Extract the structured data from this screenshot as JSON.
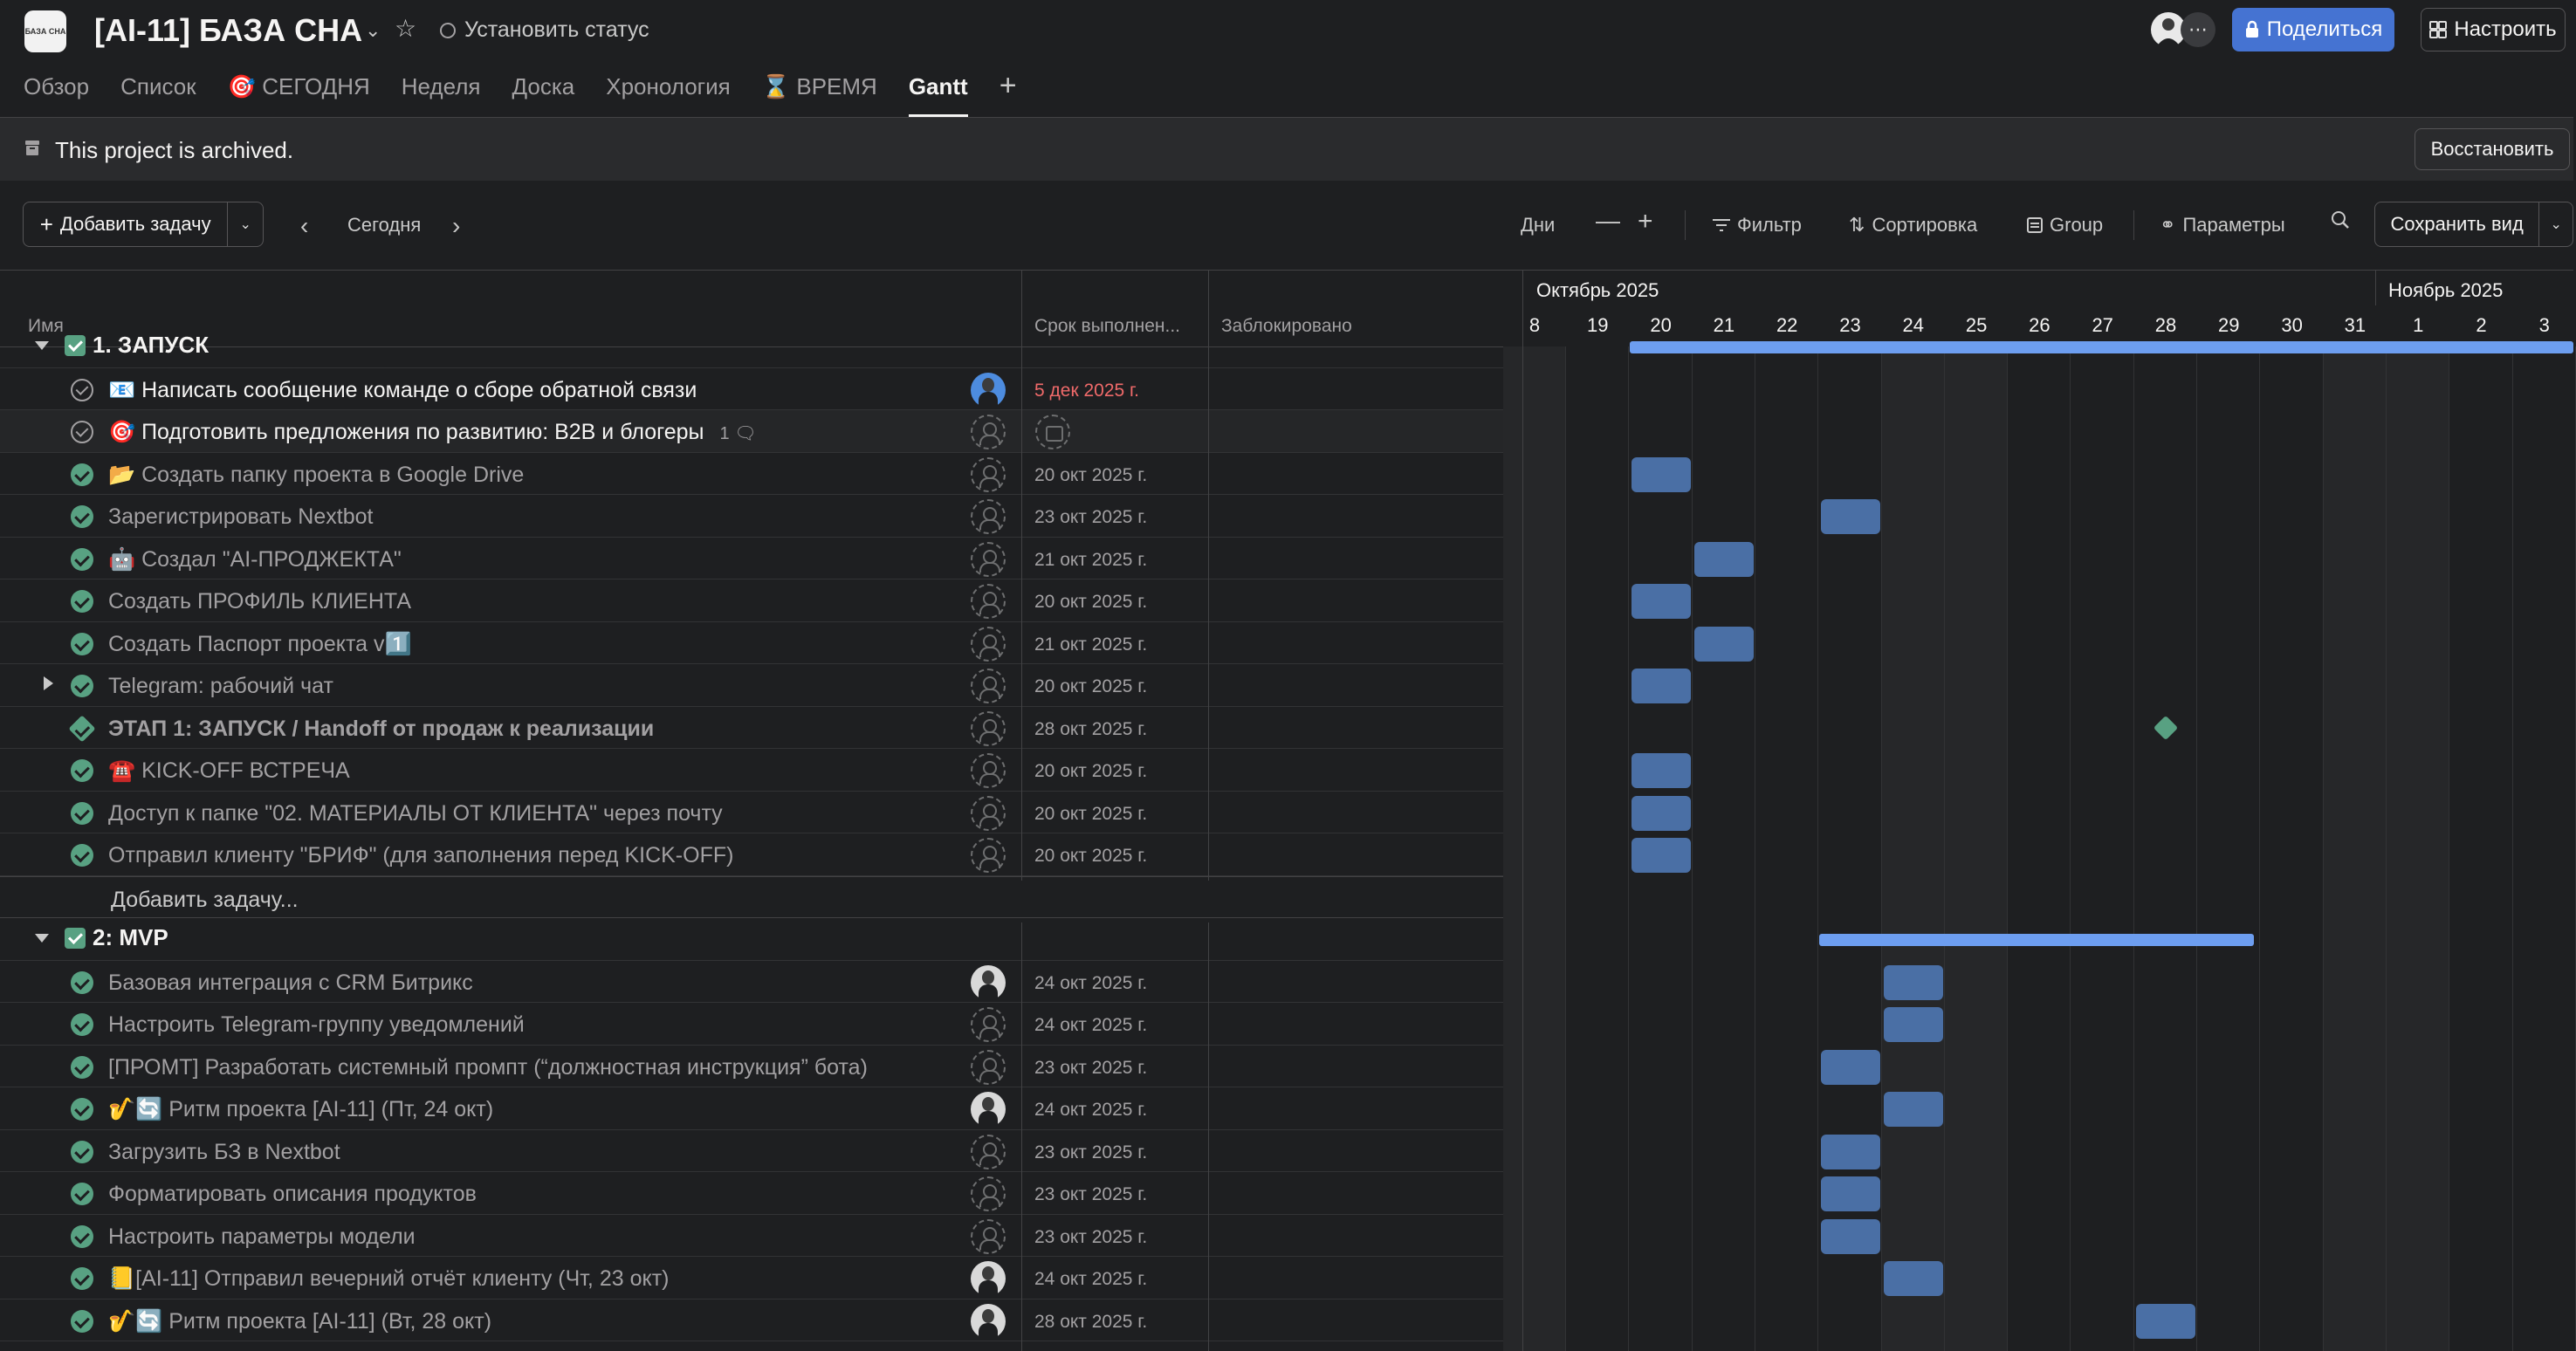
{
  "header": {
    "logo_text": "БАЗА СНА",
    "title": "[AI-11] БАЗА СНА",
    "set_status": "Установить статус",
    "share": "Поделиться",
    "customize": "Настроить"
  },
  "tabs": [
    {
      "label": "Обзор"
    },
    {
      "label": "Список"
    },
    {
      "label": "🎯 СЕГОДНЯ"
    },
    {
      "label": "Неделя"
    },
    {
      "label": "Доска"
    },
    {
      "label": "Хронология"
    },
    {
      "label": "⌛ ВРЕМЯ"
    },
    {
      "label": "Gantt"
    }
  ],
  "banner": {
    "text": "This project is archived.",
    "restore": "Восстановить"
  },
  "toolbar": {
    "add_task": "Добавить задачу",
    "today": "Сегодня",
    "days": "Дни",
    "filter": "Фильтр",
    "sort": "Сортировка",
    "group": "Group",
    "options": "Параметры",
    "save_view": "Сохранить вид"
  },
  "columns": {
    "name": "Имя",
    "due": "Срок выполнен...",
    "blocked": "Заблокировано"
  },
  "timeline": {
    "months": [
      "Октябрь 2025",
      "Ноябрь 2025"
    ],
    "days": [
      "8",
      "19",
      "20",
      "21",
      "22",
      "23",
      "24",
      "25",
      "26",
      "27",
      "28",
      "29",
      "30",
      "31",
      "1",
      "2",
      "3"
    ]
  },
  "sections": [
    {
      "title": "1. ЗАПУСК",
      "tasks": [
        {
          "name": "📧 Написать сообщение команде о сборе обратной связи",
          "due": "5 дек 2025 г.",
          "done": false,
          "assignee": "blue-avatar"
        },
        {
          "name": "🎯 Подготовить предложения по развитию: B2B и блогеры",
          "due": "",
          "done": false,
          "comments": "1"
        },
        {
          "name": "📂 Создать папку проекта в  Google Drive",
          "due": "20 окт 2025 г.",
          "done": true
        },
        {
          "name": "Зарегистрировать Nextbot",
          "due": "23 окт 2025 г.",
          "done": true
        },
        {
          "name": "🤖 Создал \"AI-ПРОДЖЕКТА\"",
          "due": "21 окт 2025 г.",
          "done": true
        },
        {
          "name": "Создать ПРОФИЛЬ КЛИЕНТА",
          "due": "20 окт 2025 г.",
          "done": true
        },
        {
          "name": "Создать Паспорт проекта v1️⃣",
          "due": "21 окт 2025 г.",
          "done": true
        },
        {
          "name": "Telegram: рабочий чат",
          "due": "20 окт 2025 г.",
          "done": true
        },
        {
          "name": "ЭТАП 1: ЗАПУСК / Handoff от продаж к реализации",
          "due": "28 окт 2025 г.",
          "done": true
        },
        {
          "name": "☎️ KICK-OFF ВСТРЕЧА",
          "due": "20 окт 2025 г.",
          "done": true
        },
        {
          "name": "Доступ к папке \"02. МАТЕРИАЛЫ ОТ КЛИЕНТА\" через почту",
          "due": "20 окт 2025 г.",
          "done": true
        },
        {
          "name": "Отправил клиенту \"БРИФ\" (для заполнения перед KICK-OFF)",
          "due": "20 окт 2025 г.",
          "done": true
        }
      ],
      "add_task": "Добавить задачу..."
    },
    {
      "title": "2: MVP",
      "tasks": [
        {
          "name": "Базовая интеграция с CRM Битрикс",
          "due": "24 окт 2025 г.",
          "done": true
        },
        {
          "name": "Настроить Telegram-группу уведомлений",
          "due": "24 окт 2025 г.",
          "done": true
        },
        {
          "name": "[ПРОМТ] Разработать системный промпт (“должностная инструкция” бота)",
          "due": "23 окт 2025 г.",
          "done": true
        },
        {
          "name": "🎷🔄 Ритм проекта [AI-11] (Пт, 24 окт)",
          "due": "24 окт 2025 г.",
          "done": true
        },
        {
          "name": "Загрузить БЗ в Nextbot",
          "due": "23 окт 2025 г.",
          "done": true
        },
        {
          "name": "Форматировать описания продуктов",
          "due": "23 окт 2025 г.",
          "done": true
        },
        {
          "name": "Настроить параметры модели",
          "due": "23 окт 2025 г.",
          "done": true
        },
        {
          "name": "📒[AI-11] Отправил вечерний отчёт клиенту (Чт, 23 окт)",
          "due": "24 окт 2025 г.",
          "done": true
        },
        {
          "name": "🎷🔄 Ритм проекта [AI-11] (Вт, 28 окт)",
          "due": "28 окт 2025 г.",
          "done": true
        }
      ]
    }
  ]
}
